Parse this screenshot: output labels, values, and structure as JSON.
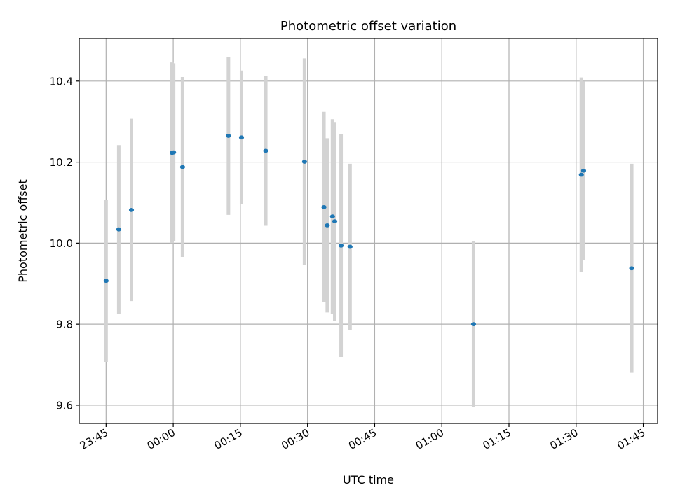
{
  "chart_data": {
    "type": "scatter",
    "title": "Photometric offset variation",
    "xlabel": "UTC time",
    "ylabel": "Photometric offset",
    "x_ticks": [
      "23:45",
      "00:00",
      "00:15",
      "00:30",
      "00:45",
      "01:00",
      "01:15",
      "01:30",
      "01:45"
    ],
    "x_tick_minutes": [
      -15,
      0,
      15,
      30,
      45,
      60,
      75,
      90,
      105
    ],
    "xlim_minutes": [
      -21,
      108.2
    ],
    "y_ticks": [
      "9.6",
      "9.8",
      "10.0",
      "10.2",
      "10.4"
    ],
    "y_tick_values": [
      9.6,
      9.8,
      10.0,
      10.2,
      10.4
    ],
    "ylim": [
      9.555,
      10.505
    ],
    "grid": true,
    "colors": {
      "marker": "#1f77b4",
      "errorbar": "#d3d3d3",
      "grid": "#b0b0b0"
    },
    "points": [
      {
        "t": "23:45",
        "y": 9.907,
        "err": 0.2
      },
      {
        "t": "23:47:50",
        "y": 10.034,
        "err": 0.208
      },
      {
        "t": "23:50:40",
        "y": 10.082,
        "err": 0.225
      },
      {
        "t": "23:59:45",
        "y": 10.223,
        "err": 0.223
      },
      {
        "t": "00:00:05",
        "y": 10.224,
        "err": 0.22
      },
      {
        "t": "00:02:05",
        "y": 10.188,
        "err": 0.222
      },
      {
        "t": "00:12:20",
        "y": 10.265,
        "err": 0.195
      },
      {
        "t": "00:15:15",
        "y": 10.261,
        "err": 0.165
      },
      {
        "t": "00:20:40",
        "y": 10.228,
        "err": 0.185
      },
      {
        "t": "00:29:20",
        "y": 10.201,
        "err": 0.255
      },
      {
        "t": "00:33:40",
        "y": 10.089,
        "err": 0.235
      },
      {
        "t": "00:34:25",
        "y": 10.044,
        "err": 0.215
      },
      {
        "t": "00:35:35",
        "y": 10.066,
        "err": 0.24
      },
      {
        "t": "00:36:05",
        "y": 10.054,
        "err": 0.245
      },
      {
        "t": "00:37:30",
        "y": 9.994,
        "err": 0.275
      },
      {
        "t": "00:39:30",
        "y": 9.991,
        "err": 0.205
      },
      {
        "t": "01:07:05",
        "y": 9.8,
        "err": 0.205
      },
      {
        "t": "01:31:10",
        "y": 10.169,
        "err": 0.24
      },
      {
        "t": "01:31:40",
        "y": 10.179,
        "err": 0.22
      },
      {
        "t": "01:42:25",
        "y": 9.938,
        "err": 0.258
      }
    ]
  }
}
